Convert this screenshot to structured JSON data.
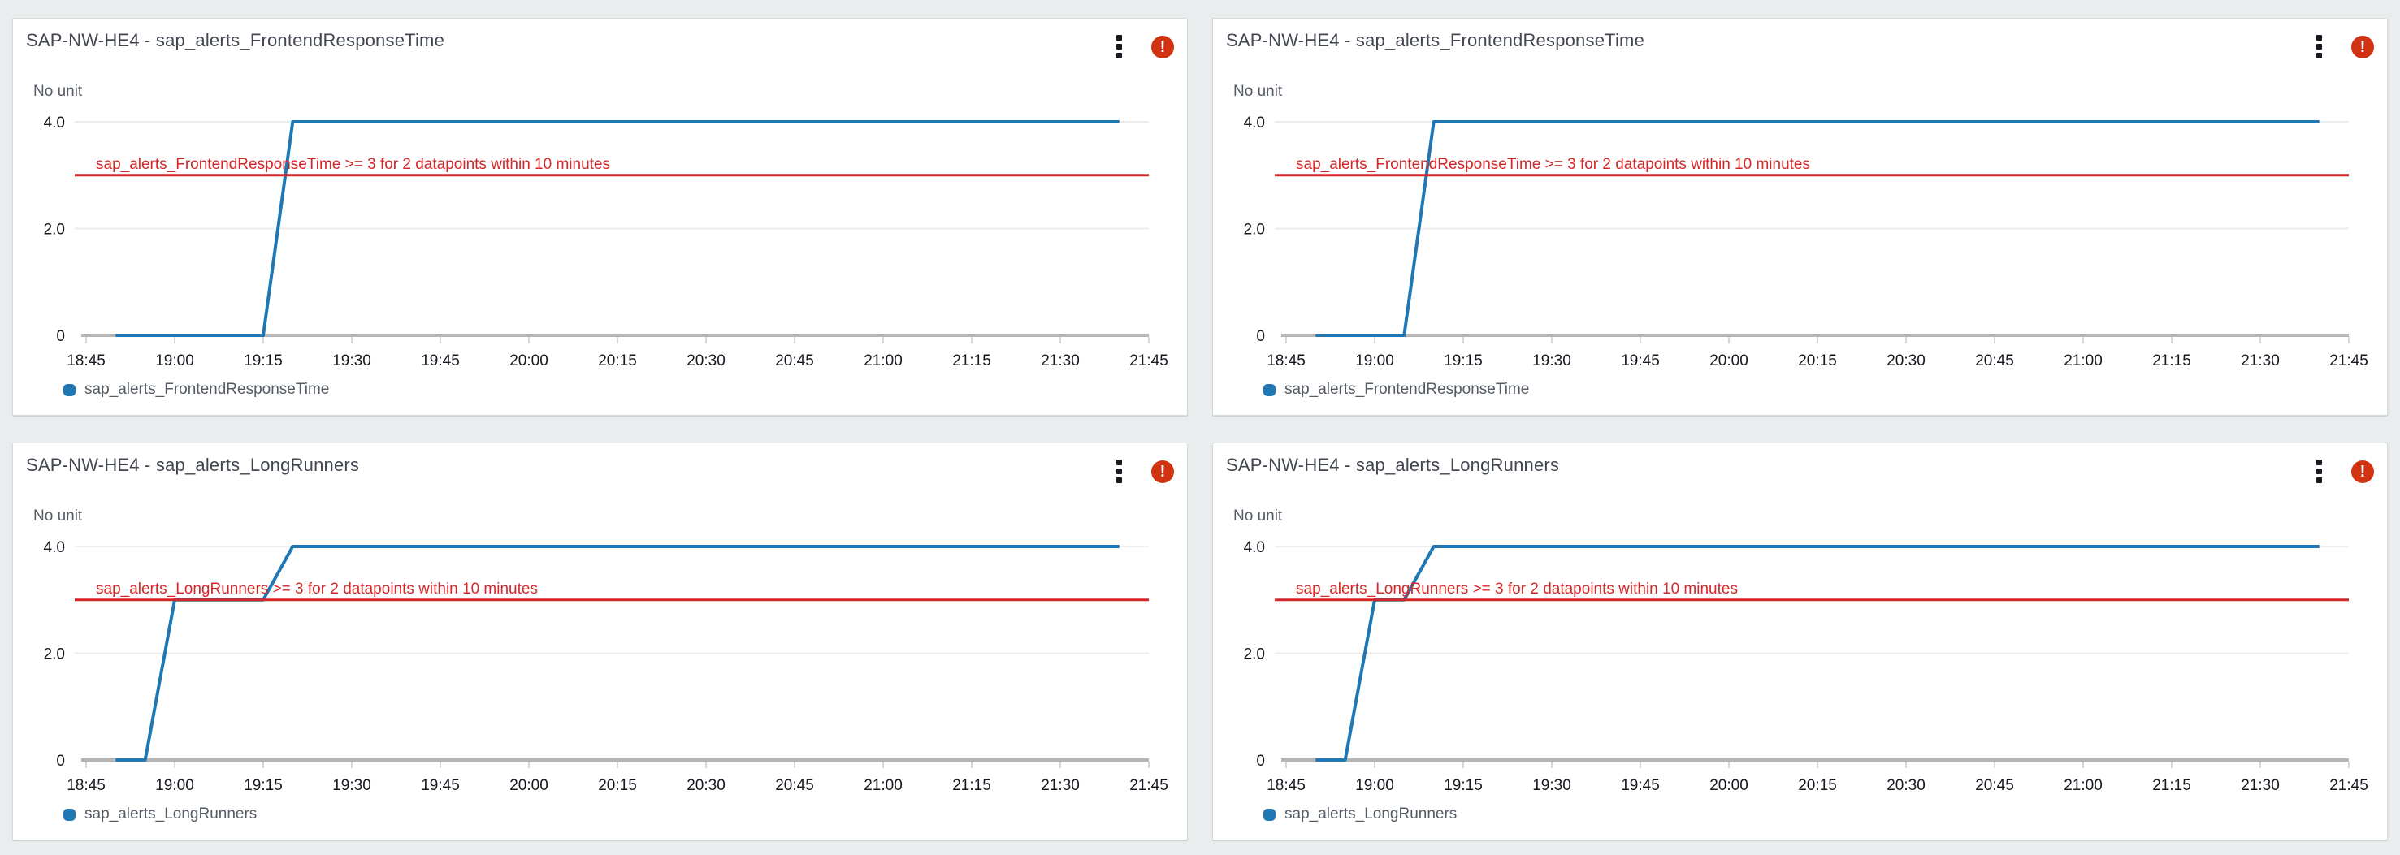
{
  "page": {
    "background": "#eaeded"
  },
  "colors": {
    "series": "#1f77b4",
    "threshold": "#d62728",
    "alarm_badge": "#d13212",
    "grid_line": "#ececec",
    "axis_line": "#b5b5b5",
    "tick": "#d5d9d9",
    "axis_text": "#16191f",
    "muted_text": "#545b64",
    "title_text": "#424650"
  },
  "icons": {
    "menu": "kebab-vertical",
    "alarm_glyph": "!"
  },
  "chart_data": [
    {
      "type": "line",
      "title": "SAP-NW-HE4 - sap_alerts_FrontendResponseTime",
      "ylabel": "No unit",
      "alarm_state": "ALARM",
      "grid": true,
      "legend_position": "bottom",
      "legend": [
        "sap_alerts_FrontendResponseTime"
      ],
      "x_ticks": [
        "18:45",
        "19:00",
        "19:15",
        "19:30",
        "19:45",
        "20:00",
        "20:15",
        "20:30",
        "20:45",
        "21:00",
        "21:15",
        "21:30",
        "21:45"
      ],
      "y_ticks": [
        {
          "value": 0,
          "label": "0"
        },
        {
          "value": 2,
          "label": "2.0"
        },
        {
          "value": 4,
          "label": "4.0"
        }
      ],
      "ylim": [
        0,
        4.4
      ],
      "threshold": {
        "value": 3,
        "label": "sap_alerts_FrontendResponseTime >= 3 for 2 datapoints within 10 minutes"
      },
      "series": [
        {
          "name": "sap_alerts_FrontendResponseTime",
          "points": [
            [
              "18:50",
              0
            ],
            [
              "19:15",
              0
            ],
            [
              "19:20",
              4
            ],
            [
              "21:40",
              4
            ]
          ]
        }
      ]
    },
    {
      "type": "line",
      "title": "SAP-NW-HE4 - sap_alerts_FrontendResponseTime",
      "ylabel": "No unit",
      "alarm_state": "ALARM",
      "grid": true,
      "legend_position": "bottom",
      "legend": [
        "sap_alerts_FrontendResponseTime"
      ],
      "x_ticks": [
        "18:45",
        "19:00",
        "19:15",
        "19:30",
        "19:45",
        "20:00",
        "20:15",
        "20:30",
        "20:45",
        "21:00",
        "21:15",
        "21:30",
        "21:45"
      ],
      "y_ticks": [
        {
          "value": 0,
          "label": "0"
        },
        {
          "value": 2,
          "label": "2.0"
        },
        {
          "value": 4,
          "label": "4.0"
        }
      ],
      "ylim": [
        0,
        4.4
      ],
      "threshold": {
        "value": 3,
        "label": "sap_alerts_FrontendResponseTime >= 3 for 2 datapoints within 10 minutes"
      },
      "series": [
        {
          "name": "sap_alerts_FrontendResponseTime",
          "points": [
            [
              "18:50",
              0
            ],
            [
              "19:05",
              0
            ],
            [
              "19:10",
              4
            ],
            [
              "21:40",
              4
            ]
          ]
        }
      ]
    },
    {
      "type": "line",
      "title": "SAP-NW-HE4 - sap_alerts_LongRunners",
      "ylabel": "No unit",
      "alarm_state": "ALARM",
      "grid": true,
      "legend_position": "bottom",
      "legend": [
        "sap_alerts_LongRunners"
      ],
      "x_ticks": [
        "18:45",
        "19:00",
        "19:15",
        "19:30",
        "19:45",
        "20:00",
        "20:15",
        "20:30",
        "20:45",
        "21:00",
        "21:15",
        "21:30",
        "21:45"
      ],
      "y_ticks": [
        {
          "value": 0,
          "label": "0"
        },
        {
          "value": 2,
          "label": "2.0"
        },
        {
          "value": 4,
          "label": "4.0"
        }
      ],
      "ylim": [
        0,
        4.4
      ],
      "threshold": {
        "value": 3,
        "label": "sap_alerts_LongRunners >= 3 for 2 datapoints within 10 minutes"
      },
      "series": [
        {
          "name": "sap_alerts_LongRunners",
          "points": [
            [
              "18:50",
              0
            ],
            [
              "18:55",
              0
            ],
            [
              "19:00",
              3
            ],
            [
              "19:15",
              3
            ],
            [
              "19:20",
              4
            ],
            [
              "21:40",
              4
            ]
          ]
        }
      ]
    },
    {
      "type": "line",
      "title": "SAP-NW-HE4 - sap_alerts_LongRunners",
      "ylabel": "No unit",
      "alarm_state": "ALARM",
      "grid": true,
      "legend_position": "bottom",
      "legend": [
        "sap_alerts_LongRunners"
      ],
      "x_ticks": [
        "18:45",
        "19:00",
        "19:15",
        "19:30",
        "19:45",
        "20:00",
        "20:15",
        "20:30",
        "20:45",
        "21:00",
        "21:15",
        "21:30",
        "21:45"
      ],
      "y_ticks": [
        {
          "value": 0,
          "label": "0"
        },
        {
          "value": 2,
          "label": "2.0"
        },
        {
          "value": 4,
          "label": "4.0"
        }
      ],
      "ylim": [
        0,
        4.4
      ],
      "threshold": {
        "value": 3,
        "label": "sap_alerts_LongRunners >= 3 for 2 datapoints within 10 minutes"
      },
      "series": [
        {
          "name": "sap_alerts_LongRunners",
          "points": [
            [
              "18:50",
              0
            ],
            [
              "18:55",
              0
            ],
            [
              "19:00",
              3
            ],
            [
              "19:05",
              3
            ],
            [
              "19:10",
              4
            ],
            [
              "21:40",
              4
            ]
          ]
        }
      ]
    }
  ]
}
